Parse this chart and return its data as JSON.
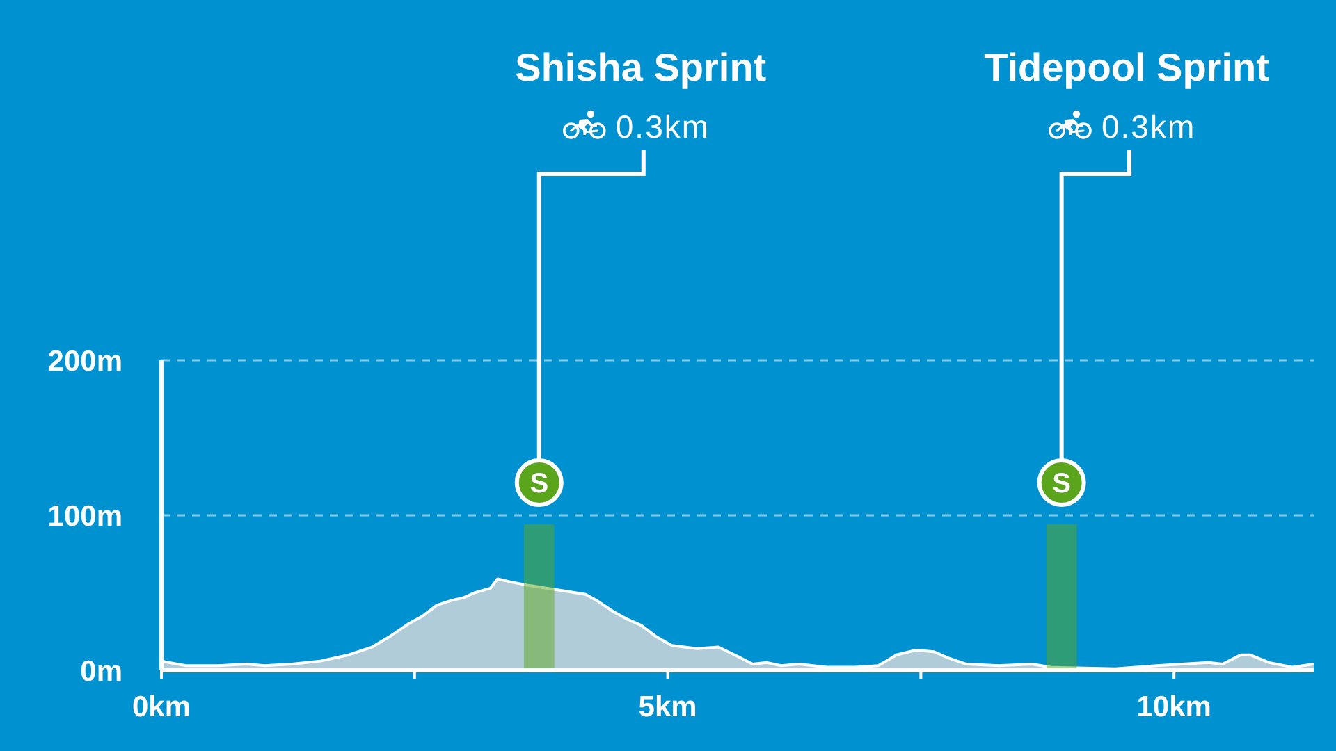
{
  "chart_data": {
    "type": "area",
    "x": [
      0,
      0.24,
      0.56,
      0.84,
      1.02,
      1.29,
      1.57,
      1.85,
      2.08,
      2.26,
      2.44,
      2.58,
      2.72,
      2.86,
      2.99,
      3.09,
      3.25,
      3.32,
      3.45,
      3.61,
      3.8,
      4.0,
      4.19,
      4.3,
      4.46,
      4.6,
      4.74,
      4.88,
      5.04,
      5.29,
      5.5,
      5.66,
      5.84,
      5.98,
      6.12,
      6.3,
      6.57,
      6.85,
      7.08,
      7.26,
      7.45,
      7.63,
      7.77,
      7.95,
      8.27,
      8.6,
      8.78,
      9.42,
      9.83,
      10.34,
      10.48,
      10.66,
      10.75,
      10.94,
      11.17,
      11.38
    ],
    "series": [
      {
        "color": "#b0ccd8",
        "values": [
          6,
          3,
          3,
          4,
          3,
          4,
          6,
          10,
          15,
          22,
          30,
          35,
          42,
          45,
          47,
          50,
          53,
          59,
          57,
          55,
          53,
          51,
          49,
          45,
          38,
          33,
          29,
          22,
          16,
          14,
          15,
          10,
          4,
          5,
          3,
          4,
          2,
          2,
          3,
          10,
          13,
          12,
          8,
          4,
          3,
          4,
          2,
          1,
          3,
          5,
          4,
          10,
          10,
          5,
          2,
          4
        ]
      }
    ],
    "xlim": [
      0,
      11.38
    ],
    "xticks": [
      {
        "value": 0,
        "label": "0km"
      },
      {
        "value": 2.5,
        "label": null
      },
      {
        "value": 5,
        "label": "5km"
      },
      {
        "value": 7.5,
        "label": null
      },
      {
        "value": 10,
        "label": "10km"
      }
    ],
    "ylim": [
      0,
      200
    ],
    "yticks": [
      {
        "value": 0,
        "label": "0m"
      },
      {
        "value": 100,
        "label": "100m"
      },
      {
        "value": 200,
        "label": "200m"
      }
    ],
    "ref_lines": [
      {
        "axis": "y",
        "value": 100,
        "color": "#86cbec",
        "line_style": "dashed"
      },
      {
        "axis": "y",
        "value": 200,
        "color": "#86cbec",
        "line_style": "dashed"
      }
    ],
    "bands": [
      {
        "axis": "x",
        "from": 3.58,
        "to": 3.88,
        "color": "#5ba51c"
      },
      {
        "axis": "x",
        "from": 8.74,
        "to": 9.04,
        "color": "#5ba51c"
      }
    ],
    "annotations": [
      "Shisha Sprint",
      "0.3km",
      "S",
      "Tidepool Sprint",
      "0.3km",
      "S"
    ]
  }
}
